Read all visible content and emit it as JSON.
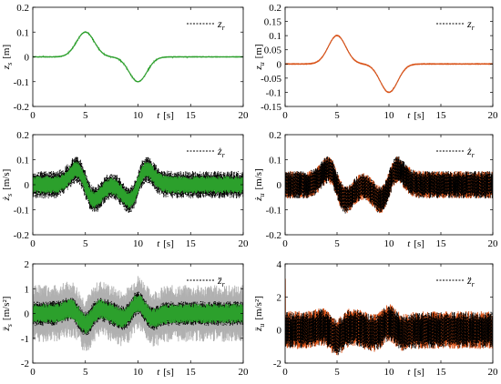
{
  "chart_data": [
    {
      "type": "line",
      "panel": "top-left",
      "xlabel_var": "t",
      "xlabel_unit": "[s]",
      "ylabel_var": "z",
      "ylabel_sub": "s",
      "ylabel_unit": "[m]",
      "xlim": [
        0,
        20
      ],
      "ylim": [
        -0.2,
        0.2
      ],
      "xticks": [
        "0",
        "5",
        "10",
        "15",
        "20"
      ],
      "yticks": [
        "0.2",
        "0.1",
        "0",
        "-0.1",
        "-0.2"
      ],
      "legend": {
        "var": "z",
        "sub": "r",
        "placement": "top-right"
      },
      "series": [
        {
          "role": "reference",
          "color": "#000000",
          "dashed": true,
          "kind": "bump",
          "amp": 0.1,
          "noise": 0
        },
        {
          "role": "response",
          "color": "#2ca02c",
          "kind": "bump",
          "amp": 0.1,
          "noise": 0.003
        }
      ]
    },
    {
      "type": "line",
      "panel": "top-right",
      "xlabel_var": "t",
      "xlabel_unit": "[s]",
      "ylabel_var": "z",
      "ylabel_sub": "u",
      "ylabel_unit": "[m]",
      "xlim": [
        0,
        20
      ],
      "ylim": [
        -0.15,
        0.2
      ],
      "xticks": [
        "0",
        "5",
        "10",
        "15",
        "20"
      ],
      "yticks": [
        "0.2",
        "0.15",
        "0.1",
        "0.05",
        "0",
        "-0.05",
        "-0.1",
        "-0.15"
      ],
      "legend": {
        "var": "z",
        "sub": "r",
        "placement": "top-right"
      },
      "series": [
        {
          "role": "reference",
          "color": "#000000",
          "dashed": true,
          "kind": "bump",
          "amp": 0.1,
          "noise": 0
        },
        {
          "role": "response",
          "color": "#d95319",
          "kind": "bump",
          "amp": 0.1,
          "noise": 0.003
        }
      ]
    },
    {
      "type": "line",
      "panel": "middle-left",
      "xlabel_var": "t",
      "xlabel_unit": "[s]",
      "ylabel_var": "ż",
      "ylabel_sub": "s",
      "ylabel_unit": "[m/s]",
      "xlim": [
        0,
        20
      ],
      "ylim": [
        -0.2,
        0.2
      ],
      "xticks": [
        "0",
        "5",
        "10",
        "15",
        "20"
      ],
      "yticks": [
        "0.2",
        "0.1",
        "0",
        "-0.1",
        "-0.2"
      ],
      "legend": {
        "var": "ż",
        "sub": "r",
        "placement": "top-right"
      },
      "series": [
        {
          "role": "reference",
          "color": "#000000",
          "dashed": true,
          "kind": "vel",
          "amp": 0.1,
          "noise": 0.055
        },
        {
          "role": "response",
          "color": "#2ca02c",
          "kind": "vel",
          "amp": 0.1,
          "noise": 0.035
        }
      ]
    },
    {
      "type": "line",
      "panel": "middle-right",
      "xlabel_var": "t",
      "xlabel_unit": "[s]",
      "ylabel_var": "ż",
      "ylabel_sub": "u",
      "ylabel_unit": "[m/s]",
      "xlim": [
        0,
        20
      ],
      "ylim": [
        -0.2,
        0.2
      ],
      "xticks": [
        "0",
        "5",
        "10",
        "15",
        "20"
      ],
      "yticks": [
        "0.2",
        "0.1",
        "0",
        "-0.1",
        "-0.2"
      ],
      "legend": {
        "var": "ż",
        "sub": "r",
        "placement": "top-right"
      },
      "series": [
        {
          "role": "response",
          "color": "#d95319",
          "kind": "vel",
          "amp": 0.1,
          "noise": 0.055
        },
        {
          "role": "reference",
          "color": "#000000",
          "dashed": true,
          "kind": "vel",
          "amp": 0.1,
          "noise": 0.055
        }
      ]
    },
    {
      "type": "line",
      "panel": "bottom-left",
      "xlabel_var": "t",
      "xlabel_unit": "[s]",
      "ylabel_var": "z̈",
      "ylabel_sub": "s",
      "ylabel_unit": "[m/s²]",
      "xlim": [
        0,
        20
      ],
      "ylim": [
        -2,
        2
      ],
      "xticks": [
        "0",
        "5",
        "10",
        "15",
        "20"
      ],
      "yticks": [
        "2",
        "1",
        "0",
        "-1",
        "-2"
      ],
      "legend": {
        "var": "z̈",
        "sub": "r",
        "placement": "top-right"
      },
      "series": [
        {
          "role": "other",
          "color": "#b0b0b0",
          "kind": "acc",
          "amp": 0.3,
          "noise": 1.15
        },
        {
          "role": "reference",
          "color": "#000000",
          "dashed": true,
          "kind": "acc",
          "amp": 0.3,
          "noise": 0.5
        },
        {
          "role": "response",
          "color": "#2ca02c",
          "kind": "acc",
          "amp": 0.3,
          "noise": 0.4
        }
      ]
    },
    {
      "type": "line",
      "panel": "bottom-right",
      "xlabel_var": "t",
      "xlabel_unit": "[s]",
      "ylabel_var": "z̈",
      "ylabel_sub": "u",
      "ylabel_unit": "[m/s²]",
      "xlim": [
        0,
        20
      ],
      "ylim": [
        -2,
        4
      ],
      "xticks": [
        "0",
        "5",
        "10",
        "15",
        "20"
      ],
      "yticks": [
        "4",
        "2",
        "0",
        "-2"
      ],
      "legend": {
        "var": "z̈",
        "sub": "r",
        "placement": "top-right"
      },
      "series": [
        {
          "role": "response",
          "color": "#d95319",
          "kind": "acc",
          "amp": 0.3,
          "noise": 1.15,
          "spike": 3.1
        },
        {
          "role": "reference",
          "color": "#000000",
          "dashed": true,
          "kind": "acc",
          "amp": 0.3,
          "noise": 1.1
        }
      ]
    }
  ]
}
